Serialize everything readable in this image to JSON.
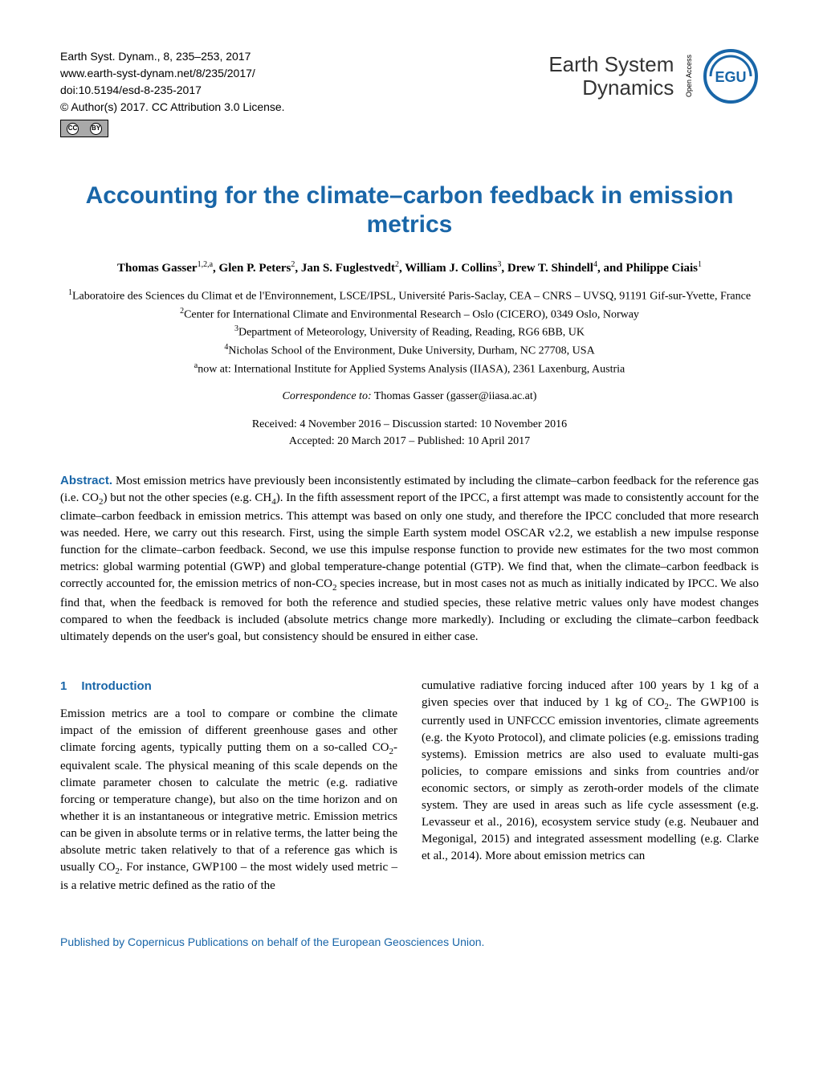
{
  "colors": {
    "accent": "#1966a8",
    "text": "#000000",
    "background": "#ffffff",
    "cc_badge_bg": "#a9a9a9"
  },
  "typography": {
    "body_font": "Times New Roman",
    "heading_font": "Arial",
    "body_size_pt": 11,
    "title_size_pt": 22,
    "journal_name_size_pt": 20
  },
  "header": {
    "citation": "Earth Syst. Dynam., 8, 235–253, 2017",
    "url": "www.earth-syst-dynam.net/8/235/2017/",
    "doi": "doi:10.5194/esd-8-235-2017",
    "copyright": "© Author(s) 2017. CC Attribution 3.0 License.",
    "journal_name_line1": "Earth System",
    "journal_name_line2": "Dynamics",
    "open_access": "Open Access",
    "egu_label": "EGU"
  },
  "title": "Accounting for the climate–carbon feedback in emission metrics",
  "authors_html": "Thomas Gasser<sup>1,2,a</sup>, Glen P. Peters<sup>2</sup>, Jan S. Fuglestvedt<sup>2</sup>, William J. Collins<sup>3</sup>, Drew T. Shindell<sup>4</sup>, and Philippe Ciais<sup>1</sup>",
  "affiliations": [
    "<sup>1</sup>Laboratoire des Sciences du Climat et de l'Environnement, LSCE/IPSL, Université Paris-Saclay, CEA – CNRS – UVSQ, 91191 Gif-sur-Yvette, France",
    "<sup>2</sup>Center for International Climate and Environmental Research – Oslo (CICERO), 0349 Oslo, Norway",
    "<sup>3</sup>Department of Meteorology, University of Reading, Reading, RG6 6BB, UK",
    "<sup>4</sup>Nicholas School of the Environment, Duke University, Durham, NC 27708, USA",
    "<sup>a</sup>now at: International Institute for Applied Systems Analysis (IIASA), 2361 Laxenburg, Austria"
  ],
  "correspondence": {
    "label": "Correspondence to:",
    "text": "Thomas Gasser (gasser@iiasa.ac.at)"
  },
  "dates": {
    "line1": "Received: 4 November 2016 – Discussion started: 10 November 2016",
    "line2": "Accepted: 20 March 2017 – Published: 10 April 2017"
  },
  "abstract": {
    "label": "Abstract.",
    "text": "Most emission metrics have previously been inconsistently estimated by including the climate–carbon feedback for the reference gas (i.e. CO<sub>2</sub>) but not the other species (e.g. CH<sub>4</sub>). In the fifth assessment report of the IPCC, a first attempt was made to consistently account for the climate–carbon feedback in emission metrics. This attempt was based on only one study, and therefore the IPCC concluded that more research was needed. Here, we carry out this research. First, using the simple Earth system model OSCAR v2.2, we establish a new impulse response function for the climate–carbon feedback. Second, we use this impulse response function to provide new estimates for the two most common metrics: global warming potential (GWP) and global temperature-change potential (GTP). We find that, when the climate–carbon feedback is correctly accounted for, the emission metrics of non-CO<sub>2</sub> species increase, but in most cases not as much as initially indicated by IPCC. We also find that, when the feedback is removed for both the reference and studied species, these relative metric values only have modest changes compared to when the feedback is included (absolute metrics change more markedly). Including or excluding the climate–carbon feedback ultimately depends on the user's goal, but consistency should be ensured in either case."
  },
  "section1": {
    "number": "1",
    "heading": "Introduction",
    "column1": "Emission metrics are a tool to compare or combine the climate impact of the emission of different greenhouse gases and other climate forcing agents, typically putting them on a so-called CO<sub>2</sub>-equivalent scale. The physical meaning of this scale depends on the climate parameter chosen to calculate the metric (e.g. radiative forcing or temperature change), but also on the time horizon and on whether it is an instantaneous or integrative metric. Emission metrics can be given in absolute terms or in relative terms, the latter being the absolute metric taken relatively to that of a reference gas which is usually CO<sub>2</sub>. For instance, GWP100 – the most widely used metric – is a relative metric defined as the ratio of the",
    "column2": "cumulative radiative forcing induced after 100 years by 1 kg of a given species over that induced by 1 kg of CO<sub>2</sub>. The GWP100 is currently used in UNFCCC emission inventories, climate agreements (e.g. the Kyoto Protocol), and climate policies (e.g. emissions trading systems). Emission metrics are also used to evaluate multi-gas policies, to compare emissions and sinks from countries and/or economic sectors, or simply as zeroth-order models of the climate system. They are used in areas such as life cycle assessment (e.g. Levasseur et al., 2016), ecosystem service study (e.g. Neubauer and Megonigal, 2015) and integrated assessment modelling (e.g. Clarke et al., 2014). More about emission metrics can"
  },
  "footer": "Published by Copernicus Publications on behalf of the European Geosciences Union."
}
